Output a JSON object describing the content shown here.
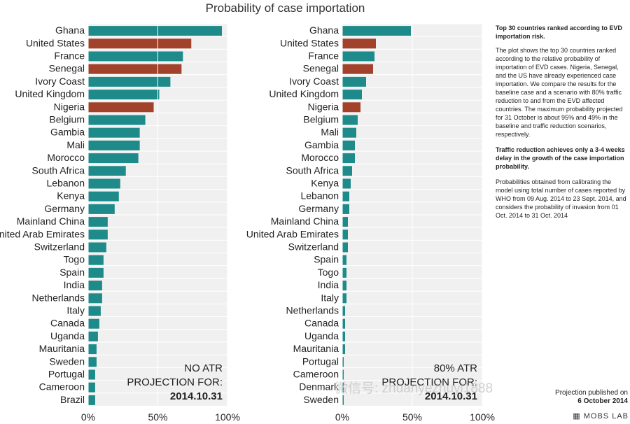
{
  "title": "Probability of case importation",
  "colors": {
    "teal": "#1e8a8a",
    "brown": "#a2422a",
    "grid": "#e3e3e3",
    "bg": "#f0f0f0"
  },
  "chart_data": [
    {
      "type": "bar",
      "orientation": "horizontal",
      "title": "Probability of case importation",
      "annotation": [
        "NO ATR",
        "PROJECTION FOR:",
        "2014.10.31"
      ],
      "x_ticks": [
        "0%",
        "50%",
        "100%"
      ],
      "xlim": [
        0,
        100
      ],
      "categories": [
        "Ghana",
        "United States",
        "France",
        "Senegal",
        "Ivory Coast",
        "United Kingdom",
        "Nigeria",
        "Belgium",
        "Gambia",
        "Mali",
        "Morocco",
        "South Africa",
        "Lebanon",
        "Kenya",
        "Germany",
        "Mainland China",
        "United Arab Emirates",
        "Switzerland",
        "Togo",
        "Spain",
        "India",
        "Netherlands",
        "Italy",
        "Canada",
        "Uganda",
        "Mauritania",
        "Sweden",
        "Portugal",
        "Cameroon",
        "Brazil"
      ],
      "values": [
        96,
        74,
        68,
        67,
        59,
        51,
        47,
        41,
        37,
        37,
        36,
        27,
        23,
        22,
        19,
        14,
        14,
        13,
        11,
        11,
        10,
        10,
        9,
        8,
        7,
        6,
        6,
        5,
        5,
        5
      ],
      "highlight": [
        "United States",
        "Senegal",
        "Nigeria"
      ]
    },
    {
      "type": "bar",
      "orientation": "horizontal",
      "annotation": [
        "80% ATR",
        "PROJECTION FOR:",
        "2014.10.31"
      ],
      "x_ticks": [
        "0%",
        "50%",
        "100%"
      ],
      "xlim": [
        0,
        100
      ],
      "categories": [
        "Ghana",
        "United States",
        "France",
        "Senegal",
        "Ivory Coast",
        "United Kingdom",
        "Nigeria",
        "Belgium",
        "Mali",
        "Gambia",
        "Morocco",
        "South Africa",
        "Kenya",
        "Lebanon",
        "Germany",
        "Mainland China",
        "United Arab Emirates",
        "Switzerland",
        "Spain",
        "Togo",
        "India",
        "Italy",
        "Netherlands",
        "Canada",
        "Uganda",
        "Mauritania",
        "Portugal",
        "Cameroon",
        "Denmark",
        "Sweden"
      ],
      "values": [
        49,
        24,
        23,
        22,
        17,
        14,
        13,
        11,
        10,
        9,
        9,
        7,
        6,
        5,
        5,
        4,
        4,
        4,
        3,
        3,
        3,
        3,
        2,
        2,
        2,
        2,
        1,
        1,
        1,
        1
      ],
      "highlight": [
        "United States",
        "Senegal",
        "Nigeria"
      ]
    }
  ],
  "side": {
    "heading": "Top 30 countries ranked according to EVD importation risk.",
    "para1": "The plot shows the top 30 countries ranked according to the relative probability of importation of EVD cases. Nigeria, Senegal, and the US have already experienced case importation. We compare the results for the baseline case and a scenario with 80% traffic reduction to and from the EVD affected countries. The maximum probability projected for 31 October is about 95% and 49% in the baseline and traffic reduction scenarios, respectively.",
    "bold": "Traffic reduction achieves only a 3-4 weeks delay in the growth of the case importation probability.",
    "para2": "Probabilities obtained from calibrating the model using total number of cases reported by WHO from 09 Aug. 2014 to 23 Sept. 2014, and considers the probability of invasion from 01 Oct. 2014 to 31 Oct. 2014"
  },
  "published": {
    "label": "Projection published on",
    "date": "6 October 2014"
  },
  "brand": "MOBS LAB",
  "watermark": "微信号: zhuanyezhuyi1888"
}
